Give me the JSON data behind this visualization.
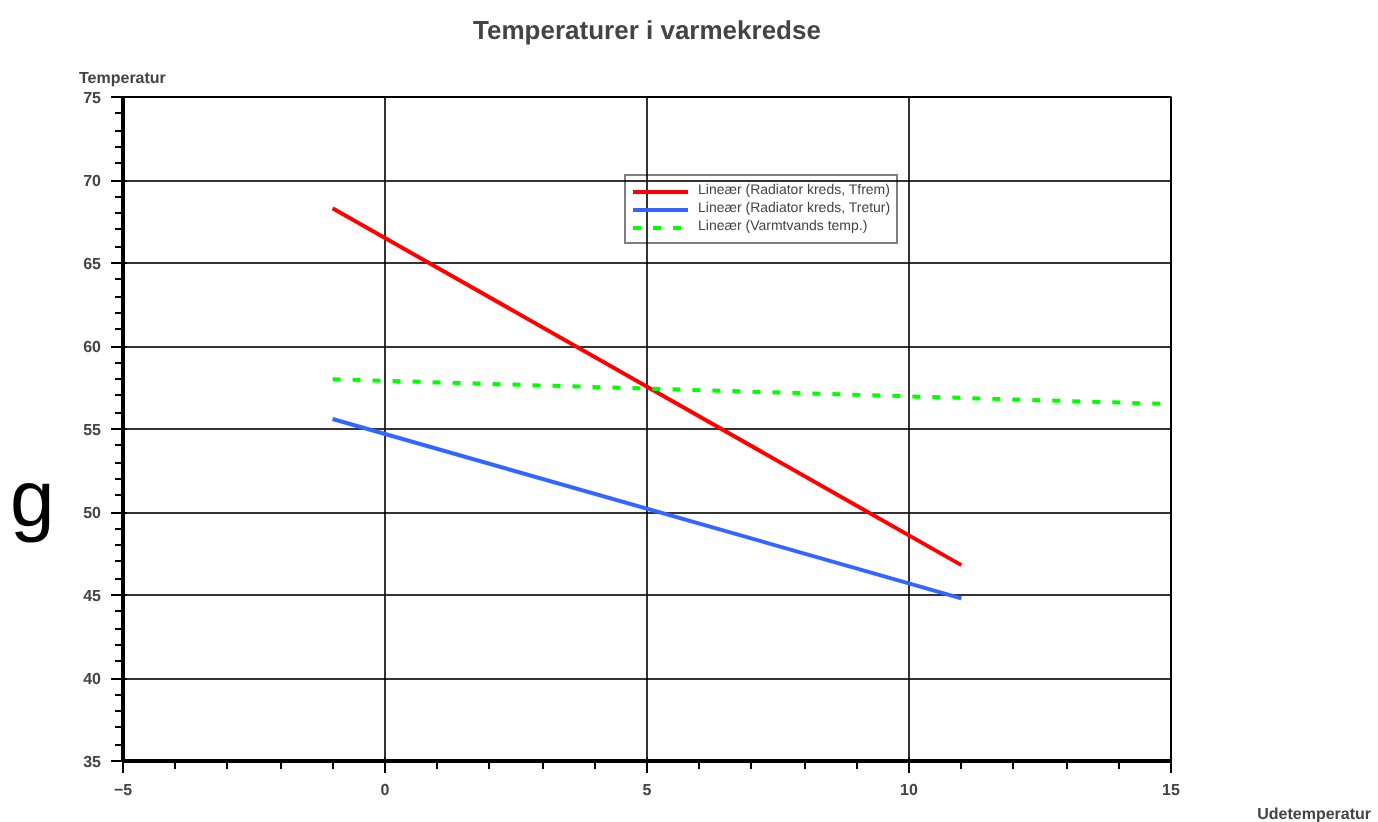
{
  "chart_data": {
    "type": "line",
    "title": "Temperaturer i varmekredse",
    "xlabel": "Udetemperatur",
    "ylabel": "Temperatur",
    "xlim": [
      -5,
      15
    ],
    "xticks": [
      -5,
      0,
      5,
      10,
      15
    ],
    "ylim": [
      35,
      75
    ],
    "yticks": [
      35,
      40,
      45,
      50,
      55,
      60,
      65,
      70,
      75
    ],
    "grid": true,
    "legend": "top right",
    "annotations": [
      "g"
    ],
    "series": [
      {
        "name": "Lineær (Radiator kreds, Tfrem)",
        "color": "#ff0000",
        "x": [
          -1,
          11
        ],
        "values": [
          68.3,
          46.8
        ]
      },
      {
        "name": "Lineær (Radiator kreds, Tretur)",
        "color": "#3366ff",
        "x": [
          -1,
          11
        ],
        "values": [
          55.6,
          44.8
        ]
      },
      {
        "name": "Lineær (Varmtvands temp.)",
        "color": "#00ff00",
        "line_style": "dashed",
        "x": [
          -1,
          15
        ],
        "values": [
          58.0,
          56.5
        ]
      }
    ]
  }
}
